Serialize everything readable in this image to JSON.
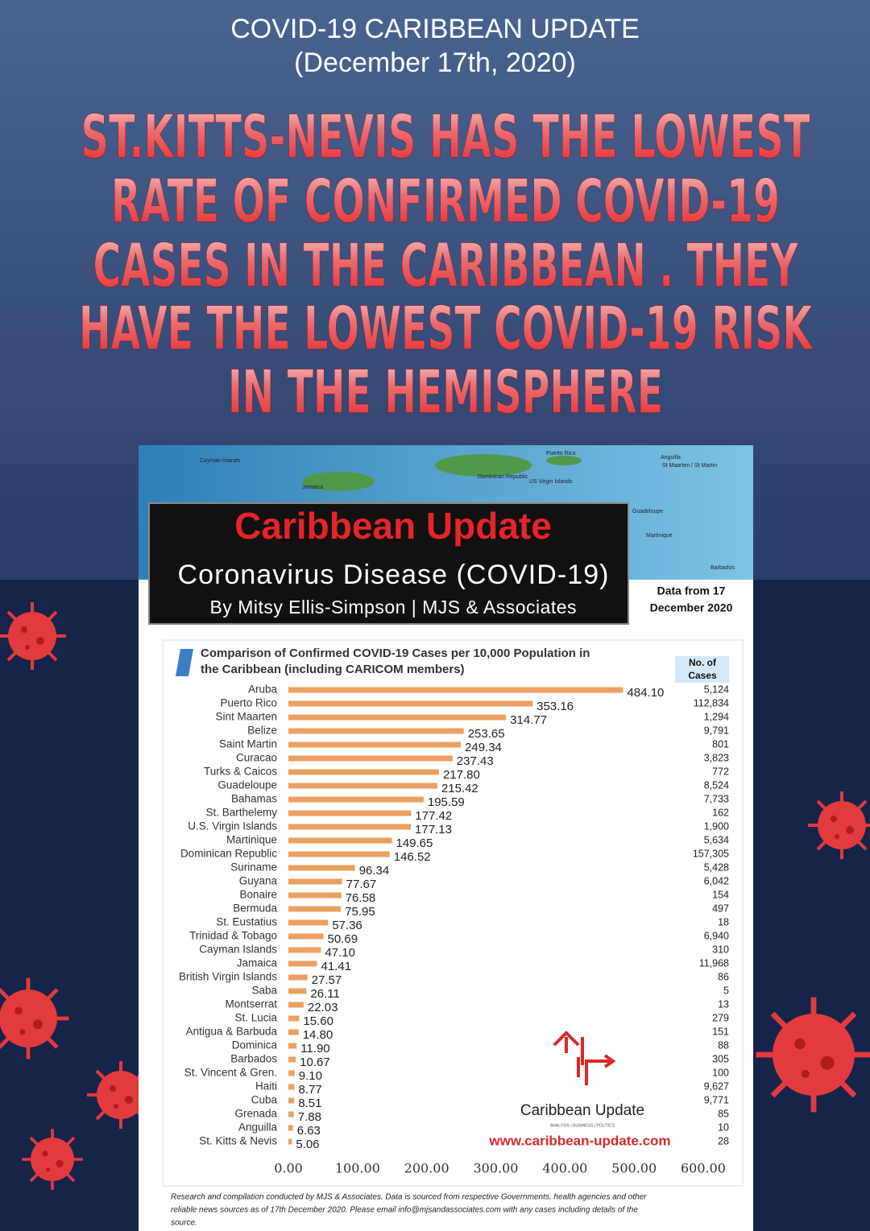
{
  "header": {
    "title": "COVID-19 CARIBBEAN UPDATE",
    "date": "(December 17th, 2020)",
    "headline": [
      "ST.KITTS-NEVIS HAS THE LOWEST",
      "RATE OF CONFIRMED COVID-19",
      "CASES IN THE CARIBBEAN . THEY",
      "HAVE THE LOWEST COVID-19 RISK",
      "IN THE HEMISPHERE"
    ]
  },
  "map_labels": [
    "Cayman Islands",
    "Jamaica",
    "Puerto Rico",
    "Dominican Republic",
    "US Virgin Islands",
    "Anguilla",
    "St Maarten / St Martin",
    "Guadeloupe",
    "Martinique",
    "Barbados"
  ],
  "banner": {
    "title": "Caribbean Update",
    "subtitle": "Coronavirus Disease (COVID-19)",
    "byline": "By Mitsy Ellis-Simpson | MJS & Associates",
    "data_date": [
      "Data from 17",
      "December 2020"
    ]
  },
  "chart_data": {
    "type": "hbar",
    "title": [
      "Comparison of Confirmed COVID-19 Cases per 10,000 Population in",
      "the Caribbean (including CARICOM members)"
    ],
    "cases_header": [
      "No. of",
      "Cases"
    ],
    "color": "#eba061",
    "categories": [
      "Aruba",
      "Puerto Rico",
      "Sint Maarten",
      "Belize",
      "Saint Martin",
      "Curacao",
      "Turks & Caicos",
      "Guadeloupe",
      "Bahamas",
      "St. Barthelemy",
      "U.S. Virgin Islands",
      "Martinique",
      "Dominican Republic",
      "Suriname",
      "Guyana",
      "Bonaire",
      "Bermuda",
      "St. Eustatius",
      "Trinidad & Tobago",
      "Cayman Islands",
      "Jamaica",
      "British Virgin Islands",
      "Saba",
      "Montserrat",
      "St. Lucia",
      "Antigua & Barbuda",
      "Dominica",
      "Barbados",
      "St. Vincent & Gren.",
      "Haiti",
      "Cuba",
      "Grenada",
      "Anguilla",
      "St. Kitts & Nevis"
    ],
    "values": [
      484.1,
      353.16,
      314.77,
      253.65,
      249.34,
      237.43,
      217.8,
      215.42,
      195.59,
      177.42,
      177.13,
      149.65,
      146.52,
      96.34,
      77.67,
      76.58,
      75.95,
      57.36,
      50.69,
      47.1,
      41.41,
      27.57,
      26.11,
      22.03,
      15.6,
      14.8,
      11.9,
      10.67,
      9.1,
      8.77,
      8.51,
      7.88,
      6.63,
      5.06
    ],
    "value_labels": [
      "484.10",
      "353.16",
      "314.77",
      "253.65",
      "249.34",
      "237.43",
      "217.80",
      "215.42",
      "195.59",
      "177.42",
      "177.13",
      "149.65",
      "146.52",
      "96.34",
      "77.67",
      "76.58",
      "75.95",
      "57.36",
      "50.69",
      "47.10",
      "41.41",
      "27.57",
      "26.11",
      "22.03",
      "15.60",
      "14.80",
      "11.90",
      "10.67",
      "9.10",
      "8.77",
      "8.51",
      "7.88",
      "6.63",
      "5.06"
    ],
    "cases": [
      "5,124",
      "112,834",
      "1,294",
      "9,791",
      "801",
      "3,823",
      "772",
      "8,524",
      "7,733",
      "162",
      "1,900",
      "5,634",
      "157,305",
      "5,428",
      "6,042",
      "154",
      "497",
      "18",
      "6,940",
      "310",
      "11,968",
      "86",
      "5",
      "13",
      "279",
      "151",
      "88",
      "305",
      "100",
      "9,627",
      "9,771",
      "85",
      "10",
      "28"
    ],
    "xlim": [
      0,
      600
    ],
    "xticks": [
      {
        "value": 0,
        "label": "0.00"
      },
      {
        "value": 100,
        "label": "100.00"
      },
      {
        "value": 200,
        "label": "200.00"
      },
      {
        "value": 300,
        "label": "300.00"
      },
      {
        "value": 400,
        "label": "400.00"
      },
      {
        "value": 500,
        "label": "500.00"
      },
      {
        "value": 600,
        "label": "600.00"
      }
    ]
  },
  "logo": {
    "name": "Caribbean Update",
    "tagline": "ANALYSIS | BUSINESS | POLITICS",
    "url": "www.caribbean-update.com"
  },
  "footer": [
    "Research and compilation conducted by MJS & Associates. Data is sourced from respective Governments, health agencies and other",
    "reliable news sources as of 17th December 2020. Please email info@mjsandassociates.com with any cases including details of the",
    "source."
  ]
}
